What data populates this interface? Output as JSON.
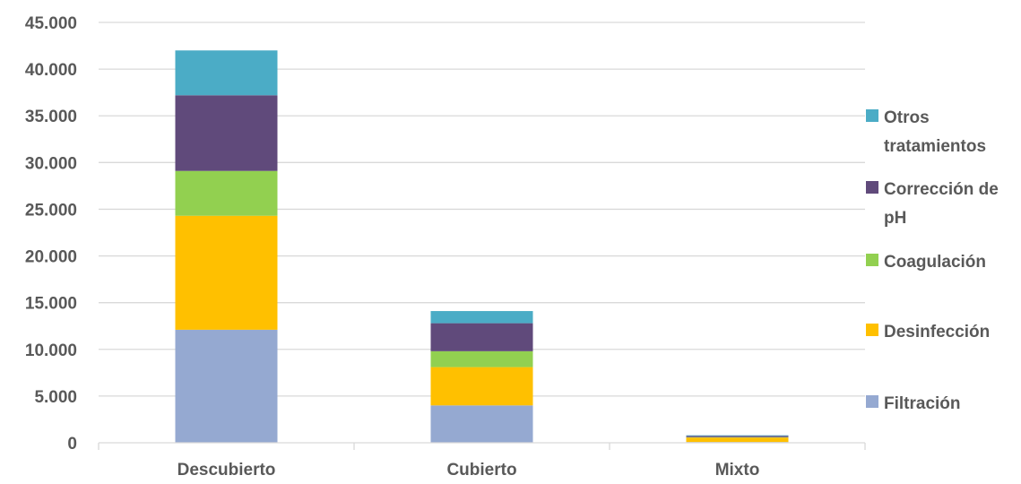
{
  "chart_data": {
    "type": "bar",
    "stacked": true,
    "categories": [
      "Descubierto",
      "Cubierto",
      "Mixto"
    ],
    "series": [
      {
        "name": "Filtración",
        "color": "#95A9D1",
        "values": [
          12100,
          4000,
          80
        ]
      },
      {
        "name": "Desinfección",
        "color": "#FFC000",
        "values": [
          12200,
          4100,
          480
        ]
      },
      {
        "name": "Coagulación",
        "color": "#92D050",
        "values": [
          4800,
          1700,
          40
        ]
      },
      {
        "name": "Corrección de pH",
        "color": "#604A7B",
        "values": [
          8100,
          3000,
          140
        ]
      },
      {
        "name": "Otros tratamientos",
        "color": "#4BACC6",
        "values": [
          4800,
          1300,
          60
        ]
      }
    ],
    "yticks": [
      "0",
      "5.000",
      "10.000",
      "15.000",
      "20.000",
      "25.000",
      "30.000",
      "35.000",
      "40.000",
      "45.000"
    ],
    "ylim": [
      0,
      45000
    ],
    "grid": true,
    "legend_position": "right",
    "legend_order": [
      "Otros tratamientos",
      "Corrección de pH",
      "Coagulación",
      "Desinfección",
      "Filtración"
    ]
  }
}
